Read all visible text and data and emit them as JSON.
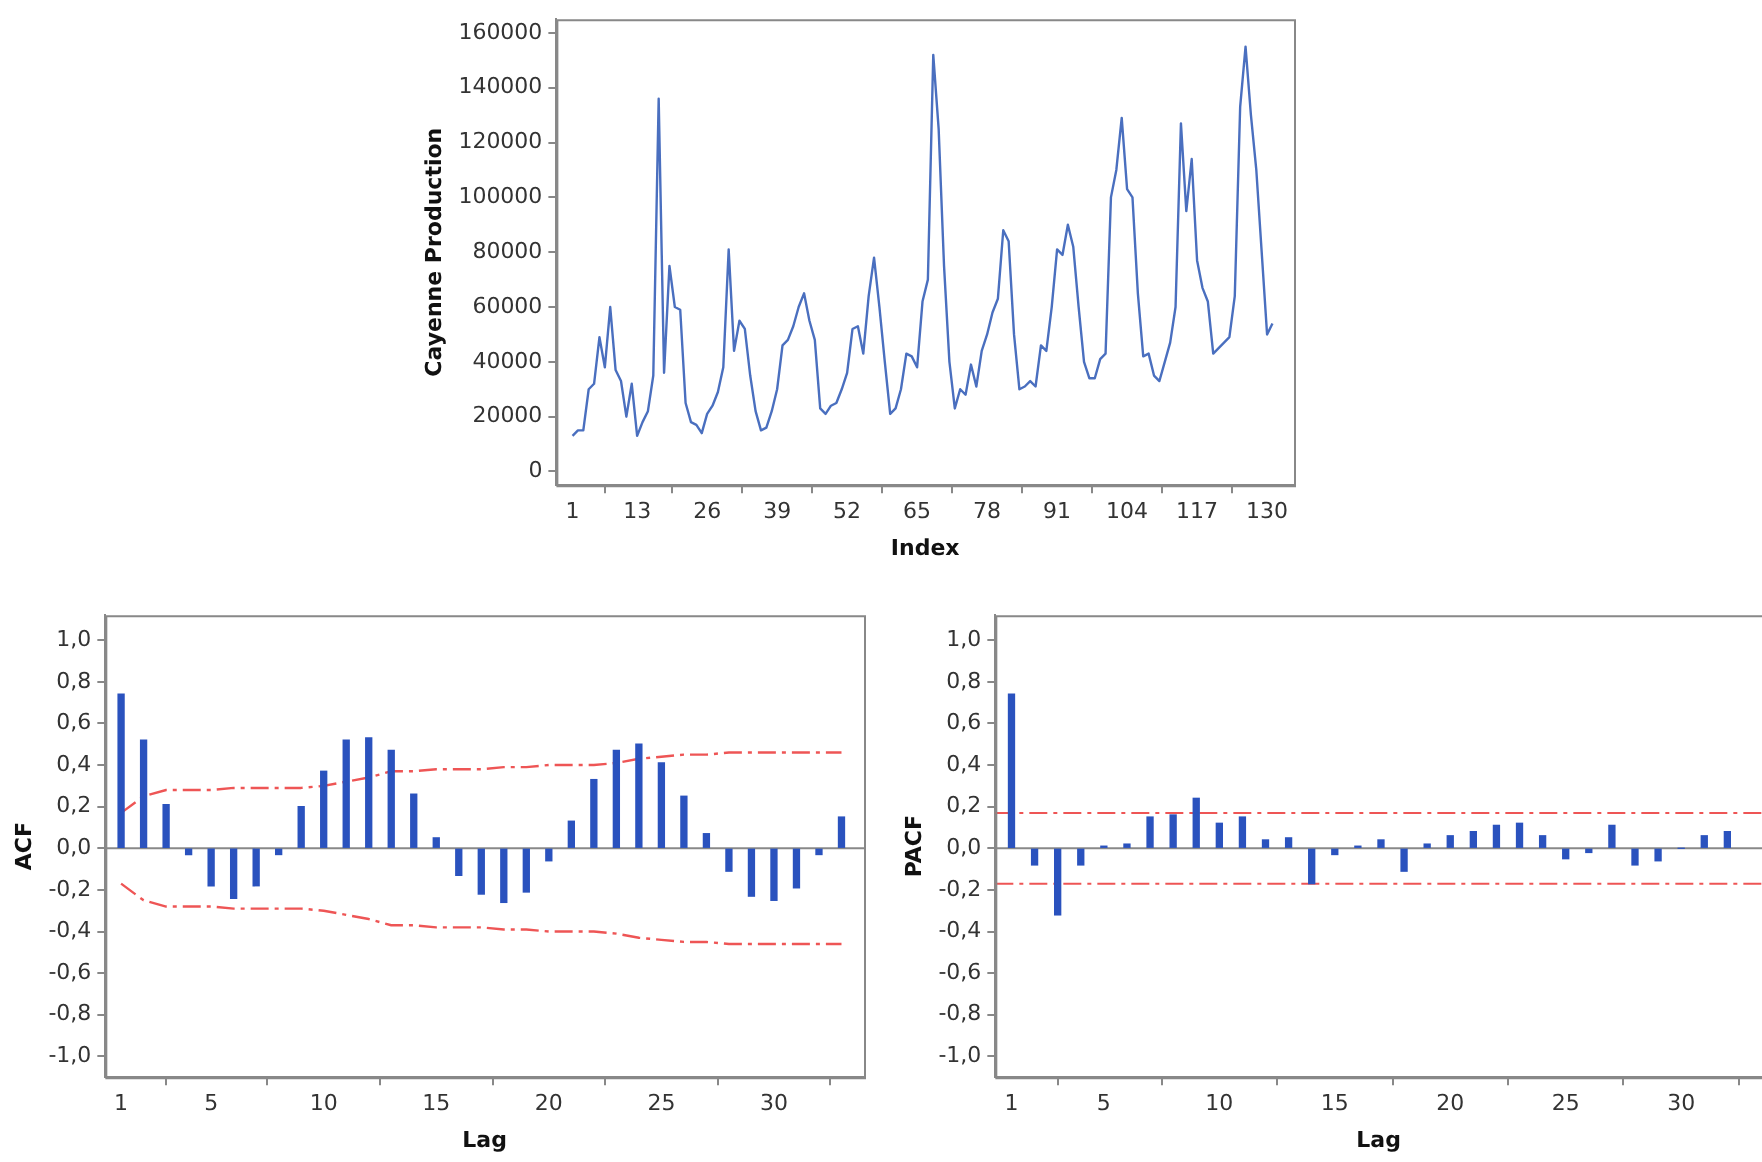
{
  "chart_data": [
    {
      "type": "line",
      "xlabel": "Index",
      "ylabel": "Cayenne Production",
      "marker": "none",
      "x": [
        1,
        2,
        3,
        4,
        5,
        6,
        7,
        8,
        9,
        10,
        11,
        12,
        13,
        14,
        15,
        16,
        17,
        18,
        19,
        20,
        21,
        22,
        23,
        24,
        25,
        26,
        27,
        28,
        29,
        30,
        31,
        32,
        33,
        34,
        35,
        36,
        37,
        38,
        39,
        40,
        41,
        42,
        43,
        44,
        45,
        46,
        47,
        48,
        49,
        50,
        51,
        52,
        53,
        54,
        55,
        56,
        57,
        58,
        59,
        60,
        61,
        62,
        63,
        64,
        65,
        66,
        67,
        68,
        69,
        70,
        71,
        72,
        73,
        74,
        75,
        76,
        77,
        78,
        79,
        80,
        81,
        82,
        83,
        84,
        85,
        86,
        87,
        88,
        89,
        90,
        91,
        92,
        93,
        94,
        95,
        96,
        97,
        98,
        99,
        100,
        101,
        102,
        103,
        104,
        105,
        106,
        107,
        108,
        109,
        110,
        111,
        112,
        113,
        114,
        115,
        116,
        117,
        118,
        119,
        120,
        121,
        122,
        123,
        124,
        125,
        126,
        127,
        128,
        129,
        130,
        131
      ],
      "xlim": [
        -2,
        135
      ],
      "xticks": [
        1,
        13,
        26,
        39,
        52,
        65,
        78,
        91,
        104,
        117,
        130
      ],
      "ylim": [
        -5000,
        165000
      ],
      "yticks": [
        0,
        20000,
        40000,
        60000,
        80000,
        100000,
        120000,
        140000,
        160000
      ],
      "series": [
        {
          "color": "#4a6fbf",
          "values": [
            13000,
            15000,
            15000,
            30000,
            32000,
            49000,
            38000,
            60000,
            37000,
            33000,
            20000,
            32000,
            13000,
            18000,
            22000,
            35000,
            136000,
            36000,
            75000,
            60000,
            59000,
            25000,
            18000,
            17000,
            14000,
            21000,
            24000,
            29000,
            38000,
            81000,
            44000,
            55000,
            52000,
            35000,
            22000,
            15000,
            16000,
            22000,
            30000,
            46000,
            48000,
            53000,
            60000,
            65000,
            55000,
            48000,
            23000,
            21000,
            24000,
            25000,
            30000,
            36000,
            52000,
            53000,
            43000,
            64000,
            78000,
            60000,
            40000,
            21000,
            23000,
            30000,
            43000,
            42000,
            38000,
            62000,
            70000,
            152000,
            125000,
            75000,
            40000,
            23000,
            30000,
            28000,
            39000,
            31000,
            44000,
            50000,
            58000,
            63000,
            88000,
            84000,
            50000,
            30000,
            31000,
            33000,
            31000,
            46000,
            44000,
            60000,
            81000,
            79000,
            90000,
            82000,
            60000,
            40000,
            34000,
            34000,
            41000,
            43000,
            100000,
            110000,
            129000,
            103000,
            100000,
            65000,
            42000,
            43000,
            35000,
            33000,
            40000,
            47000,
            60000,
            127000,
            95000,
            114000,
            77000,
            67000,
            62000,
            43000,
            45000,
            47000,
            49000,
            64000,
            133000,
            155000,
            130000,
            110000,
            80000,
            50000,
            54000
          ]
        }
      ]
    },
    {
      "type": "bar",
      "xlabel": "Lag",
      "ylabel": "ACF",
      "marker": "none",
      "x": [
        1,
        2,
        3,
        4,
        5,
        6,
        7,
        8,
        9,
        10,
        11,
        12,
        13,
        14,
        15,
        16,
        17,
        18,
        19,
        20,
        21,
        22,
        23,
        24,
        25,
        26,
        27,
        28,
        29,
        30,
        31,
        32,
        33
      ],
      "xlim": [
        0.3,
        34
      ],
      "xticks": [
        1,
        5,
        10,
        15,
        20,
        25,
        30
      ],
      "ylim": [
        -1.1,
        1.12
      ],
      "yticks": [
        {
          "value": -1,
          "label": "-1,0"
        },
        {
          "value": -0.8,
          "label": "-0,8"
        },
        {
          "value": -0.6,
          "label": "-0,6"
        },
        {
          "value": -0.4,
          "label": "-0,4"
        },
        {
          "value": -0.2,
          "label": "-0,2"
        },
        {
          "value": 0,
          "label": "0,0"
        },
        {
          "value": 0.2,
          "label": "0,2"
        },
        {
          "value": 0.4,
          "label": "0,4"
        },
        {
          "value": 0.6,
          "label": "0,6"
        },
        {
          "value": 0.8,
          "label": "0,8"
        },
        {
          "value": 1,
          "label": "1,0"
        }
      ],
      "ref_lines": [
        {
          "axis": "y",
          "value": 0,
          "color": "#888888"
        }
      ],
      "series": [
        {
          "color": "#2a52be",
          "values": [
            0.74,
            0.52,
            0.21,
            -0.03,
            -0.18,
            -0.24,
            -0.18,
            -0.03,
            0.2,
            0.37,
            0.52,
            0.53,
            0.47,
            0.26,
            0.05,
            -0.13,
            -0.22,
            -0.26,
            -0.21,
            -0.06,
            0.13,
            0.33,
            0.47,
            0.5,
            0.41,
            0.25,
            0.07,
            -0.11,
            -0.23,
            -0.25,
            -0.19,
            -0.03,
            0.15
          ]
        },
        {
          "type": "line",
          "color": "#ee5555",
          "line_style": "dashed",
          "values": [
            0.17,
            0.25,
            0.28,
            0.28,
            0.28,
            0.29,
            0.29,
            0.29,
            0.29,
            0.3,
            0.32,
            0.34,
            0.37,
            0.37,
            0.38,
            0.38,
            0.38,
            0.39,
            0.39,
            0.4,
            0.4,
            0.4,
            0.41,
            0.43,
            0.44,
            0.45,
            0.45,
            0.46,
            0.46,
            0.46,
            0.46,
            0.46,
            0.46
          ]
        },
        {
          "type": "line",
          "color": "#ee5555",
          "line_style": "dashed",
          "values": [
            -0.17,
            -0.25,
            -0.28,
            -0.28,
            -0.28,
            -0.29,
            -0.29,
            -0.29,
            -0.29,
            -0.3,
            -0.32,
            -0.34,
            -0.37,
            -0.37,
            -0.38,
            -0.38,
            -0.38,
            -0.39,
            -0.39,
            -0.4,
            -0.4,
            -0.4,
            -0.41,
            -0.43,
            -0.44,
            -0.45,
            -0.45,
            -0.46,
            -0.46,
            -0.46,
            -0.46,
            -0.46,
            -0.46
          ]
        }
      ]
    },
    {
      "type": "bar",
      "xlabel": "Lag",
      "ylabel": "PACF",
      "x": [
        1,
        2,
        3,
        4,
        5,
        6,
        7,
        8,
        9,
        10,
        11,
        12,
        13,
        14,
        15,
        16,
        17,
        18,
        19,
        20,
        21,
        22,
        23,
        24,
        25,
        26,
        27,
        28,
        29,
        30,
        31,
        32
      ],
      "xlim": [
        0.3,
        33.5
      ],
      "xticks": [
        1,
        5,
        10,
        15,
        20,
        25,
        30
      ],
      "ylim": [
        -1.1,
        1.12
      ],
      "yticks": [
        {
          "value": -1,
          "label": "-1,0"
        },
        {
          "value": -0.8,
          "label": "-0,8"
        },
        {
          "value": -0.6,
          "label": "-0,6"
        },
        {
          "value": -0.4,
          "label": "-0,4"
        },
        {
          "value": -0.2,
          "label": "-0,2"
        },
        {
          "value": 0,
          "label": "0,0"
        },
        {
          "value": 0.2,
          "label": "0,2"
        },
        {
          "value": 0.4,
          "label": "0,4"
        },
        {
          "value": 0.6,
          "label": "0,6"
        },
        {
          "value": 0.8,
          "label": "0,8"
        },
        {
          "value": 1,
          "label": "1,0"
        }
      ],
      "ref_lines": [
        {
          "axis": "y",
          "value": 0,
          "color": "#888888"
        },
        {
          "axis": "y",
          "value": 0.17,
          "color": "#ee5555",
          "line_style": "dashed"
        },
        {
          "axis": "y",
          "value": -0.17,
          "color": "#ee5555",
          "line_style": "dashed"
        }
      ],
      "series": [
        {
          "color": "#2a52be",
          "values": [
            0.74,
            -0.08,
            -0.32,
            -0.08,
            0.01,
            0.02,
            0.15,
            0.16,
            0.24,
            0.12,
            0.15,
            0.04,
            0.05,
            -0.17,
            -0.03,
            0.01,
            0.04,
            -0.11,
            0.02,
            0.06,
            0.08,
            0.11,
            0.12,
            0.06,
            -0.05,
            -0.02,
            0.11,
            -0.08,
            -0.06,
            0.0,
            0.06,
            0.08
          ]
        }
      ]
    }
  ]
}
